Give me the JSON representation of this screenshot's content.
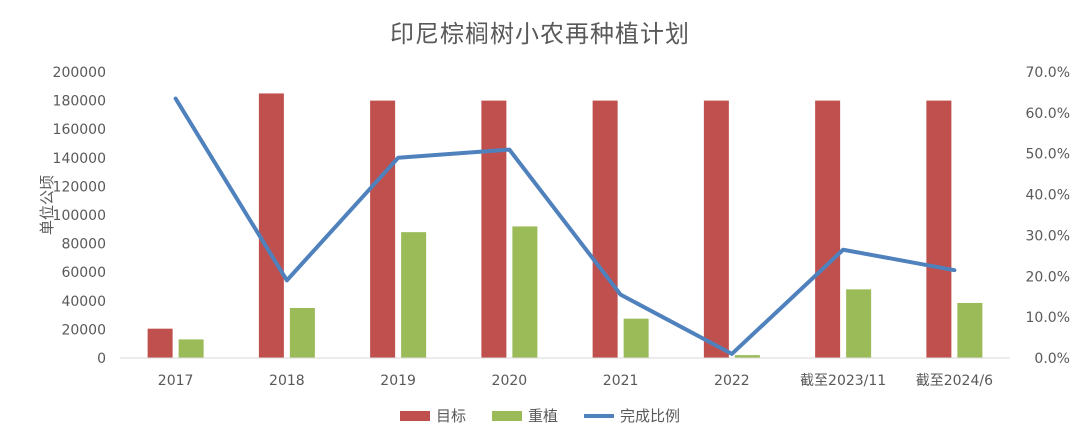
{
  "chart_data": {
    "type": "bar",
    "title": "印尼棕榈树小农再种植计划",
    "ylabel": "单位公顷",
    "categories": [
      "2017",
      "2018",
      "2019",
      "2020",
      "2021",
      "2022",
      "截至2023/11",
      "截至2024/6"
    ],
    "ylim": [
      0,
      200000
    ],
    "y_ticks": [
      "0",
      "20000",
      "40000",
      "60000",
      "80000",
      "100000",
      "120000",
      "140000",
      "160000",
      "180000",
      "200000"
    ],
    "y2lim": [
      0,
      0.7
    ],
    "y2_ticks": [
      "0.0%",
      "10.0%",
      "20.0%",
      "30.0%",
      "40.0%",
      "50.0%",
      "60.0%",
      "70.0%"
    ],
    "series": [
      {
        "name": "目标",
        "type": "bar",
        "color": "#C0504D",
        "values": [
          20500,
          185000,
          180000,
          180000,
          180000,
          180000,
          180000,
          180000
        ]
      },
      {
        "name": "重植",
        "type": "bar",
        "color": "#9BBB59",
        "values": [
          13000,
          35000,
          88000,
          92000,
          27500,
          2000,
          48000,
          38500
        ]
      },
      {
        "name": "完成比例",
        "type": "line",
        "axis": "right",
        "color": "#4F81BD",
        "values": [
          0.635,
          0.19,
          0.49,
          0.51,
          0.155,
          0.01,
          0.265,
          0.215
        ]
      }
    ],
    "grid": false,
    "legend_position": "bottom"
  }
}
